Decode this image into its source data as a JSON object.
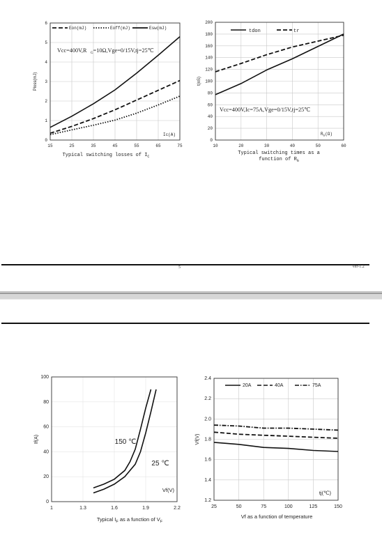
{
  "colors": {
    "ink": "#111111",
    "grid": "#c8c8c8",
    "band": "#d6d6d6"
  },
  "page_number": "5",
  "version": "Ver-1.2",
  "chart_data": [
    {
      "type": "line",
      "title": "",
      "xlabel": "Ic(A)",
      "ylabel": "Ploss(mJ)",
      "caption": "Typical switching losses of I",
      "caption_sub": "C",
      "annotation": "Vcc=400V,RG=10Ω,Vge=0/15V,tj=25℃",
      "xlim": [
        15,
        75
      ],
      "ylim": [
        0,
        6
      ],
      "x_ticks": [
        "15",
        "25",
        "35",
        "45",
        "55",
        "65",
        "75"
      ],
      "y_ticks": [
        "0",
        "1",
        "2",
        "3",
        "4",
        "5",
        "6"
      ],
      "legend": [
        "Eon(mJ)",
        "Eoff(mJ)",
        "Esw(mJ)"
      ],
      "series": [
        {
          "name": "Eon(mJ)",
          "style": "dashed",
          "x": [
            15,
            25,
            35,
            45,
            55,
            65,
            75
          ],
          "y": [
            0.35,
            0.7,
            1.1,
            1.55,
            2.05,
            2.55,
            3.05
          ]
        },
        {
          "name": "Eoff(mJ)",
          "style": "dotted",
          "x": [
            15,
            25,
            35,
            45,
            55,
            65,
            75
          ],
          "y": [
            0.28,
            0.52,
            0.76,
            1.02,
            1.38,
            1.8,
            2.25
          ]
        },
        {
          "name": "Esw(mJ)",
          "style": "solid",
          "x": [
            15,
            25,
            35,
            45,
            55,
            65,
            75
          ],
          "y": [
            0.65,
            1.22,
            1.86,
            2.57,
            3.43,
            4.35,
            5.3
          ]
        }
      ]
    },
    {
      "type": "line",
      "title": "",
      "xlabel": "RG(Ω)",
      "ylabel": "t(nS)",
      "caption": "Typical switching times as a function of R",
      "caption_sub": "G",
      "annotation": "Vcc=400V,Ic=75A,Vge=0/15V,tj=25℃",
      "xlim": [
        10,
        60
      ],
      "ylim": [
        0,
        200
      ],
      "x_ticks": [
        "10",
        "20",
        "30",
        "40",
        "50",
        "60"
      ],
      "y_ticks": [
        "0",
        "20",
        "40",
        "60",
        "80",
        "100",
        "120",
        "140",
        "160",
        "180",
        "200"
      ],
      "legend": [
        "tdon",
        "tr"
      ],
      "series": [
        {
          "name": "tdon",
          "style": "solid",
          "x": [
            10,
            20,
            30,
            40,
            50,
            60
          ],
          "y": [
            77,
            96,
            119,
            138,
            159,
            180
          ]
        },
        {
          "name": "tr",
          "style": "dashed",
          "x": [
            10,
            20,
            30,
            40,
            50,
            60
          ],
          "y": [
            116,
            130,
            145,
            158,
            168,
            178
          ]
        }
      ]
    },
    {
      "type": "line",
      "title": "",
      "xlabel": "Vf(V)",
      "ylabel": "If(A)",
      "caption": "Typical I",
      "caption_sub": "F",
      "caption_tail": " as a function of V",
      "caption_sub2": "F",
      "xlim": [
        1,
        2.2
      ],
      "ylim": [
        0,
        100
      ],
      "x_ticks": [
        "1",
        "1.3",
        "1.6",
        "1.9",
        "2.2"
      ],
      "y_ticks": [
        "0",
        "20",
        "40",
        "60",
        "80",
        "100"
      ],
      "labels": [
        "150 ℃",
        "25 ℃"
      ],
      "series": [
        {
          "name": "150 ℃",
          "style": "solid",
          "x": [
            1.4,
            1.5,
            1.6,
            1.7,
            1.75,
            1.8,
            1.85,
            1.9,
            1.95
          ],
          "y": [
            11,
            14,
            18,
            25,
            32,
            42,
            58,
            75,
            90
          ]
        },
        {
          "name": "25 ℃",
          "style": "solid",
          "x": [
            1.4,
            1.5,
            1.6,
            1.7,
            1.8,
            1.85,
            1.9,
            1.95,
            2.0
          ],
          "y": [
            7,
            10,
            14,
            20,
            30,
            40,
            55,
            72,
            90
          ]
        }
      ]
    },
    {
      "type": "line",
      "title": "",
      "xlabel": "Vf as a function of temperature",
      "ylabel": "Vf(V)",
      "xlim": [
        25,
        150
      ],
      "ylim": [
        1.2,
        2.4
      ],
      "x_ticks": [
        "25",
        "50",
        "75",
        "100",
        "125",
        "150"
      ],
      "y_ticks": [
        "1.2",
        "1.4",
        "1.6",
        "1.8",
        "2.0",
        "2.2",
        "2.4"
      ],
      "corner_label": "tj(℃)",
      "legend": [
        "20A",
        "40A",
        "75A"
      ],
      "series": [
        {
          "name": "20A",
          "style": "solid",
          "x": [
            25,
            50,
            75,
            100,
            125,
            150
          ],
          "y": [
            1.77,
            1.75,
            1.72,
            1.71,
            1.69,
            1.68
          ]
        },
        {
          "name": "40A",
          "style": "dashed",
          "x": [
            25,
            50,
            75,
            100,
            125,
            150
          ],
          "y": [
            1.87,
            1.85,
            1.84,
            1.83,
            1.82,
            1.81
          ]
        },
        {
          "name": "75A",
          "style": "dashdot",
          "x": [
            25,
            50,
            75,
            100,
            125,
            150
          ],
          "y": [
            1.94,
            1.93,
            1.91,
            1.91,
            1.9,
            1.89
          ]
        }
      ]
    }
  ]
}
